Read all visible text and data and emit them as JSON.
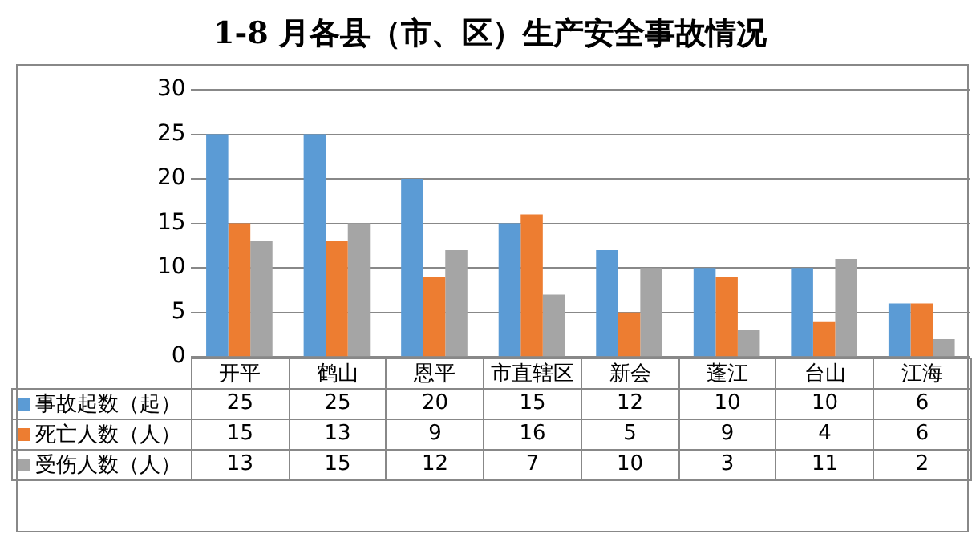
{
  "chart_data": {
    "type": "bar",
    "title": "1-8 月各县（市、区）生产安全事故情况",
    "categories": [
      "开平",
      "鹤山",
      "恩平",
      "市直辖区",
      "新会",
      "蓬江",
      "台山",
      "江海"
    ],
    "series": [
      {
        "name": "事故起数（起）",
        "color": "#5b9bd5",
        "values": [
          25,
          25,
          20,
          15,
          12,
          10,
          10,
          6
        ]
      },
      {
        "name": "死亡人数（人）",
        "color": "#ed7d31",
        "values": [
          15,
          13,
          9,
          16,
          5,
          9,
          4,
          6
        ]
      },
      {
        "name": "受伤人数（人）",
        "color": "#a5a5a5",
        "values": [
          13,
          15,
          12,
          7,
          10,
          3,
          11,
          2
        ]
      }
    ],
    "ylim": [
      0,
      30
    ],
    "yticks": [
      0,
      5,
      10,
      15,
      20,
      25,
      30
    ],
    "grid": "y",
    "legend": "bottom",
    "data_labels": true
  }
}
